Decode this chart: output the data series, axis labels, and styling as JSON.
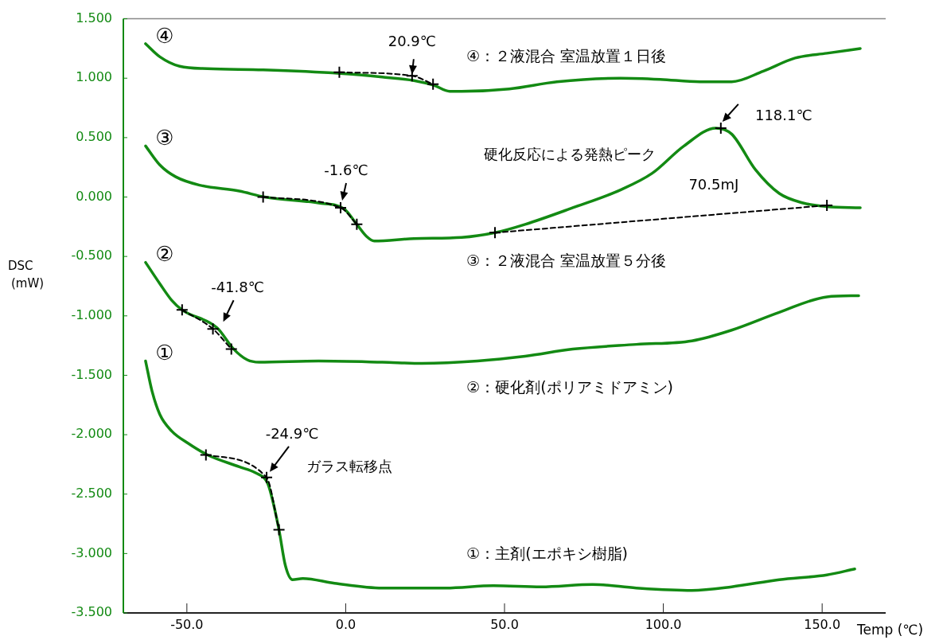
{
  "chart_data": {
    "type": "line",
    "xlabel": "Temp (℃)",
    "ylabel": "DSC (mW)",
    "xlim": [
      -70,
      170
    ],
    "ylim": [
      -3.5,
      1.5
    ],
    "xticks": [
      {
        "value": -50,
        "label": "-50.0"
      },
      {
        "value": 0,
        "label": "0.0"
      },
      {
        "value": 50,
        "label": "50.0"
      },
      {
        "value": 100,
        "label": "100.0"
      },
      {
        "value": 150,
        "label": "150.0"
      }
    ],
    "yticks": [
      {
        "value": 1.5,
        "label": "1.500"
      },
      {
        "value": 1,
        "label": "1.000"
      },
      {
        "value": 0.5,
        "label": "0.500"
      },
      {
        "value": 0,
        "label": "0.000"
      },
      {
        "value": -0.5,
        "label": "-0.500"
      },
      {
        "value": -1,
        "label": "-1.000"
      },
      {
        "value": -1.5,
        "label": "-1.500"
      },
      {
        "value": -2,
        "label": "-2.000"
      },
      {
        "value": -2.5,
        "label": "-2.500"
      },
      {
        "value": -3,
        "label": "-3.000"
      },
      {
        "value": -3.5,
        "label": "-3.500"
      }
    ],
    "grid": false,
    "legend": false,
    "marker": "none",
    "line_style": "solid",
    "series": [
      {
        "name": "①：主剤(エポキシ樹脂)",
        "color": "#138a13",
        "x": [
          -63,
          -61,
          -58.5,
          -54.75,
          -49.75,
          -43.5,
          -33.5,
          -28.5,
          -24.75,
          -23.5,
          -21,
          -19,
          -16.75,
          -13.5,
          -3.5,
          11.5,
          31.5,
          46.5,
          61.5,
          77.75,
          91.5,
          109,
          121.5,
          136.5,
          151.5,
          160.25
        ],
        "values": [
          -1.38,
          -1.63,
          -1.83,
          -1.97,
          -2.07,
          -2.17,
          -2.27,
          -2.32,
          -2.4,
          -2.5,
          -2.8,
          -3.1,
          -3.22,
          -3.21,
          -3.25,
          -3.29,
          -3.29,
          -3.27,
          -3.28,
          -3.26,
          -3.29,
          -3.31,
          -3.28,
          -3.22,
          -3.18,
          -3.13
        ]
      },
      {
        "name": "②：硬化剤(ポリアミドアミン)",
        "color": "#138a13",
        "x": [
          -63,
          -58.5,
          -54.75,
          -51.5,
          -40.5,
          -35.25,
          -31,
          -27.25,
          -8.5,
          11.5,
          24,
          41.5,
          56.5,
          71.5,
          91.5,
          109,
          121.5,
          136.5,
          151.5,
          161.5
        ],
        "values": [
          -0.55,
          -0.73,
          -0.87,
          -0.95,
          -1.1,
          -1.28,
          -1.37,
          -1.39,
          -1.38,
          -1.39,
          -1.4,
          -1.38,
          -1.34,
          -1.28,
          -1.24,
          -1.21,
          -1.12,
          -0.97,
          -0.84,
          -0.83
        ]
      },
      {
        "name": "③：２液混合 室温放置５分後",
        "color": "#138a13",
        "x": [
          -63,
          -58.5,
          -53.5,
          -46,
          -33.5,
          -25.5,
          -8.5,
          -0.5,
          3.5,
          6.5,
          9,
          21.5,
          36.5,
          47,
          56.5,
          71.5,
          86.5,
          96.5,
          106.5,
          116.5,
          121.5,
          129,
          136.5,
          144,
          151.5,
          162
        ],
        "values": [
          0.43,
          0.27,
          0.17,
          0.1,
          0.05,
          0,
          -0.05,
          -0.1,
          -0.23,
          -0.33,
          -0.37,
          -0.35,
          -0.34,
          -0.3,
          -0.23,
          -0.09,
          0.06,
          0.2,
          0.43,
          0.58,
          0.53,
          0.23,
          0.03,
          -0.05,
          -0.08,
          -0.09
        ]
      },
      {
        "name": "④：２液混合 室温放置１日後",
        "color": "#138a13",
        "x": [
          -63,
          -58.5,
          -52.25,
          -43.5,
          -26,
          -1.75,
          11.5,
          21.5,
          27.75,
          32.75,
          36.5,
          51.5,
          66.5,
          86.5,
          99,
          111.5,
          121.5,
          131.5,
          141.5,
          151.5,
          162
        ],
        "values": [
          1.29,
          1.18,
          1.1,
          1.08,
          1.07,
          1.04,
          1.01,
          0.98,
          0.94,
          0.89,
          0.89,
          0.91,
          0.97,
          1,
          0.99,
          0.97,
          0.97,
          1.06,
          1.17,
          1.21,
          1.25
        ]
      },
      {
        "color": "#000000",
        "marker": "cross",
        "line_style": "dashed",
        "x": [
          -44,
          -24.9,
          -21
        ],
        "values": [
          -2.17,
          -2.36,
          -2.8
        ]
      },
      {
        "color": "#000000",
        "marker": "cross",
        "line_style": "dashed",
        "x": [
          -51.5,
          -41.8,
          -36
        ],
        "values": [
          -0.95,
          -1.11,
          -1.28
        ]
      },
      {
        "color": "#000000",
        "marker": "cross",
        "line_style": "dashed",
        "x": [
          -26,
          -1.6,
          3.5
        ],
        "values": [
          0,
          -0.09,
          -0.23
        ]
      },
      {
        "color": "#000000",
        "marker": "cross",
        "line_style": "dashed",
        "x": [
          47,
          151.5
        ],
        "values": [
          -0.3,
          -0.07
        ]
      },
      {
        "color": "#000000",
        "marker": "cross",
        "line_style": "dashed",
        "x": [
          -2,
          20.9,
          27.5
        ],
        "values": [
          1.05,
          1.02,
          0.95
        ]
      },
      {
        "color": "#000000",
        "marker": "cross",
        "line_style": "none",
        "x": [
          118.1
        ],
        "values": [
          0.58
        ]
      }
    ],
    "annotations": [
      "①",
      "②",
      "③",
      "④",
      {
        "text": "20.9℃",
        "x": 20.9,
        "y": 1
      },
      {
        "text": "-1.6℃",
        "x": -1.6,
        "y": -0.09
      },
      {
        "text": "-41.8℃",
        "x": -41.8,
        "y": -1.11
      },
      {
        "text": "-24.9℃",
        "x": -24.9,
        "y": -2.36
      },
      {
        "text": "118.1℃",
        "x": 118.1,
        "y": 0.58
      },
      "硬化反応による発熱ピーク",
      "70.5mJ",
      "ガラス転移点"
    ]
  }
}
